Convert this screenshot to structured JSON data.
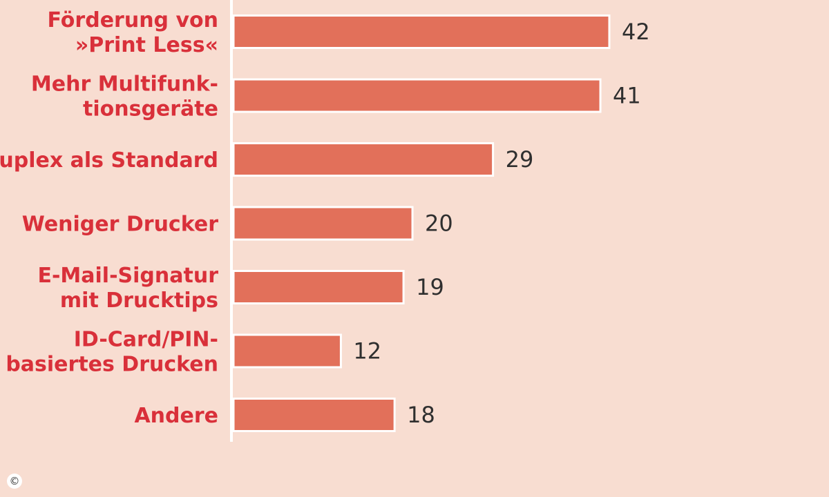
{
  "chart_data": {
    "type": "bar",
    "orientation": "horizontal",
    "categories": [
      [
        "Förderung von",
        "»Print Less«"
      ],
      [
        "Mehr Multifunk-",
        "tionsgeräte"
      ],
      [
        "Duplex als Standard"
      ],
      [
        "Weniger Drucker"
      ],
      [
        "E-Mail-Signatur",
        "mit Drucktips"
      ],
      [
        "ID-Card/PIN-",
        "basiertes Drucken"
      ],
      [
        "Andere"
      ]
    ],
    "values": [
      42,
      41,
      29,
      20,
      19,
      12,
      18
    ],
    "value_labels": [
      "42",
      "41",
      "29",
      "20",
      "19",
      "12",
      "18"
    ],
    "xlim": [
      0,
      42
    ],
    "grid": false,
    "colors": {
      "bar": "#e2705a",
      "category_text": "#d9303a",
      "value_text": "#2f2f2f",
      "background": "#f8ddd1"
    }
  },
  "footer": {
    "copyright_symbol": "©"
  }
}
